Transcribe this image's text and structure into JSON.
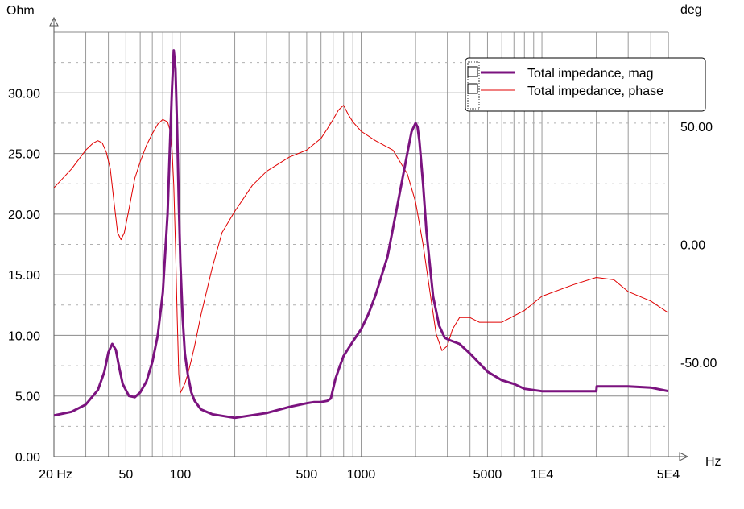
{
  "chart_data": {
    "type": "line",
    "title": "",
    "xlabel": "Hz",
    "ylabel_left": "Ohm",
    "ylabel_right": "deg",
    "x_scale": "log",
    "xlim": [
      20,
      50000
    ],
    "ylim_left": [
      0,
      35
    ],
    "ylim_right": [
      -90,
      90
    ],
    "grid": true,
    "legend_position": "top-right",
    "x_ticks": [
      {
        "value": 20,
        "label": "20 Hz"
      },
      {
        "value": 50,
        "label": "50"
      },
      {
        "value": 100,
        "label": "100"
      },
      {
        "value": 500,
        "label": "500"
      },
      {
        "value": 1000,
        "label": "1000"
      },
      {
        "value": 5000,
        "label": "5000"
      },
      {
        "value": 10000,
        "label": "1E4"
      },
      {
        "value": 50000,
        "label": "5E4"
      }
    ],
    "y_ticks_left": [
      {
        "value": 0,
        "label": "0.00"
      },
      {
        "value": 5,
        "label": "5.00"
      },
      {
        "value": 10,
        "label": "10.00"
      },
      {
        "value": 15,
        "label": "15.00"
      },
      {
        "value": 20,
        "label": "20.00"
      },
      {
        "value": 25,
        "label": "25.00"
      },
      {
        "value": 30,
        "label": "30.00"
      }
    ],
    "y_ticks_right": [
      {
        "value": 50,
        "label": "50.00"
      },
      {
        "value": 0,
        "label": "0.00"
      },
      {
        "value": -50,
        "label": "-50.00"
      }
    ],
    "series": [
      {
        "name": "Total impedance, mag",
        "axis": "left",
        "color": "#7b137f",
        "width": 3,
        "x": [
          20,
          25,
          30,
          35,
          38,
          40,
          42,
          44,
          46,
          48,
          52,
          56,
          60,
          65,
          70,
          75,
          80,
          85,
          88,
          90,
          92,
          94,
          96,
          98,
          100,
          103,
          106,
          110,
          115,
          120,
          130,
          150,
          200,
          300,
          400,
          500,
          550,
          600,
          650,
          680,
          700,
          720,
          760,
          800,
          900,
          1000,
          1100,
          1200,
          1400,
          1600,
          1800,
          1900,
          2000,
          2050,
          2100,
          2200,
          2300,
          2500,
          2700,
          2900,
          3100,
          3500,
          4000,
          5000,
          6000,
          7000,
          8000,
          10000,
          15000,
          20000,
          20100,
          25000,
          30000,
          40000,
          50000
        ],
        "y": [
          3.4,
          3.7,
          4.3,
          5.5,
          7.0,
          8.6,
          9.3,
          8.8,
          7.3,
          6.0,
          5.0,
          4.9,
          5.3,
          6.2,
          7.8,
          10.0,
          13.5,
          20.0,
          26.5,
          30.5,
          33.5,
          32.0,
          27.0,
          21.0,
          16.0,
          11.5,
          8.5,
          6.8,
          5.3,
          4.6,
          3.9,
          3.5,
          3.2,
          3.6,
          4.1,
          4.4,
          4.5,
          4.5,
          4.6,
          4.8,
          5.6,
          6.4,
          7.4,
          8.3,
          9.5,
          10.5,
          11.8,
          13.3,
          16.5,
          21.0,
          25.0,
          26.8,
          27.5,
          27.2,
          26.0,
          22.5,
          18.5,
          13.2,
          10.8,
          9.8,
          9.6,
          9.3,
          8.5,
          7.0,
          6.3,
          6.0,
          5.6,
          5.4,
          5.4,
          5.4,
          5.8,
          5.8,
          5.8,
          5.7,
          5.4
        ]
      },
      {
        "name": "Total impedance, phase",
        "axis": "right",
        "color": "#e00000",
        "width": 1,
        "x": [
          20,
          25,
          30,
          33,
          35,
          37,
          39,
          41,
          43,
          45,
          47,
          49,
          52,
          56,
          60,
          65,
          70,
          75,
          80,
          85,
          88,
          90,
          92,
          94,
          96,
          98,
          100,
          103,
          106,
          110,
          115,
          120,
          130,
          150,
          170,
          200,
          250,
          300,
          400,
          500,
          600,
          650,
          700,
          750,
          800,
          850,
          900,
          1000,
          1200,
          1500,
          1800,
          2000,
          2200,
          2400,
          2600,
          2800,
          3000,
          3200,
          3500,
          4000,
          4500,
          5000,
          6000,
          8000,
          10000,
          15000,
          20000,
          25000,
          30000,
          40000,
          50000
        ],
        "y": [
          24,
          32,
          40,
          43,
          44,
          43,
          39,
          32,
          18,
          5,
          2,
          5,
          15,
          28,
          35,
          42,
          47,
          51,
          53,
          52,
          48,
          40,
          25,
          0,
          -30,
          -55,
          -63,
          -61,
          -59,
          -55,
          -49,
          -43,
          -30,
          -10,
          5,
          14,
          25,
          31,
          37,
          40,
          45,
          49,
          53,
          57,
          59,
          55,
          52,
          48,
          44,
          40,
          30,
          18,
          0,
          -20,
          -38,
          -45,
          -43,
          -36,
          -31,
          -31,
          -33,
          -33,
          -33,
          -28,
          -22,
          -17,
          -14,
          -15,
          -20,
          -24,
          -29
        ]
      }
    ]
  },
  "legend": {
    "items": [
      {
        "label": "Total impedance, mag",
        "color": "#7b137f"
      },
      {
        "label": "Total impedance, phase",
        "color": "#e00000"
      }
    ]
  }
}
